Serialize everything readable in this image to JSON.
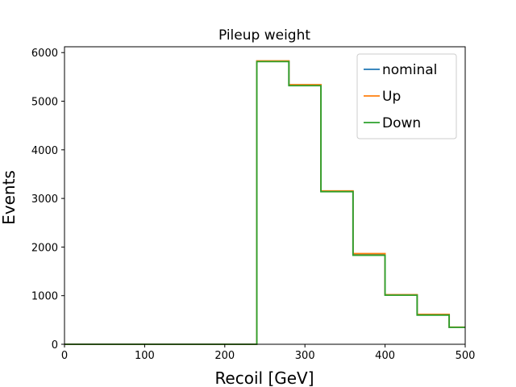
{
  "chart_data": {
    "type": "line",
    "style": "step-histogram",
    "title": "Pileup weight",
    "xlabel": "Recoil [GeV]",
    "ylabel": "Events",
    "xlim": [
      0,
      500
    ],
    "ylim": [
      0,
      6120
    ],
    "xticks": [
      0,
      100,
      200,
      300,
      400,
      500
    ],
    "yticks": [
      0,
      1000,
      2000,
      3000,
      4000,
      5000,
      6000
    ],
    "grid": false,
    "legend_position": "top-right",
    "bin_edges": [
      0,
      40,
      80,
      120,
      160,
      200,
      240,
      280,
      320,
      360,
      400,
      440,
      480,
      500
    ],
    "series": [
      {
        "name": "nominal",
        "color": "#1f77b4",
        "values": [
          0,
          0,
          0,
          0,
          0,
          0,
          5820,
          5330,
          3145,
          1845,
          1015,
          605,
          350
        ]
      },
      {
        "name": "Up",
        "color": "#ff7f0e",
        "values": [
          0,
          0,
          0,
          0,
          0,
          0,
          5830,
          5340,
          3155,
          1865,
          1020,
          615,
          352
        ]
      },
      {
        "name": "Down",
        "color": "#2ca02c",
        "values": [
          0,
          0,
          0,
          0,
          0,
          0,
          5815,
          5320,
          3140,
          1830,
          1010,
          600,
          348
        ]
      }
    ]
  }
}
